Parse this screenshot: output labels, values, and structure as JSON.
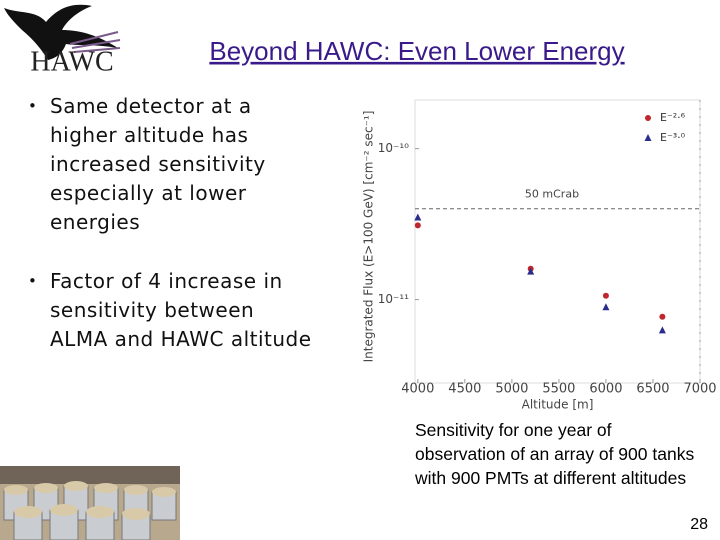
{
  "slide": {
    "logo_text": "HAWC",
    "title": "Beyond HAWC: Even Lower Energy",
    "bullets": [
      "Same detector at a higher altitude has increased sensitivity especially at lower energies",
      "Factor of 4 increase in sensitivity between ALMA and HAWC altitude"
    ],
    "caption": "Sensitivity for one year of observation of an array of 900 tanks with 900 PMTs at different altitudes",
    "page_number": 28
  },
  "chart_data": {
    "type": "scatter",
    "x_label": "Altitude [m]",
    "y_label": "Integrated Flux (E>100 GeV) [cm⁻² sec⁻¹]",
    "xlim": [
      3970,
      7000
    ],
    "xticks": [
      4000,
      4500,
      5000,
      5500,
      6000,
      6500,
      7000
    ],
    "ylim": [
      2.8e-12,
      2.1e-10
    ],
    "ylog": true,
    "yticks": [
      {
        "value": 1e-10,
        "label": "10⁻¹⁰"
      },
      {
        "value": 1e-11,
        "label": "10⁻¹¹"
      }
    ],
    "legend": "upper right",
    "annotations": [
      {
        "text": "50 mCrab",
        "value": 4e-11
      }
    ],
    "series": [
      {
        "name": "E⁻²·⁶",
        "color": "#c0262d",
        "marker": "circle",
        "x": [
          4000,
          5200,
          6000,
          6600
        ],
        "values": [
          3.1e-11,
          1.6e-11,
          1.06e-11,
          7.7e-12
        ]
      },
      {
        "name": "E⁻³·⁰",
        "color": "#2b2d8c",
        "marker": "triangle",
        "x": [
          4000,
          5200,
          6000,
          6600
        ],
        "values": [
          3.5e-11,
          1.53e-11,
          8.9e-12,
          6.25e-12
        ]
      }
    ]
  }
}
